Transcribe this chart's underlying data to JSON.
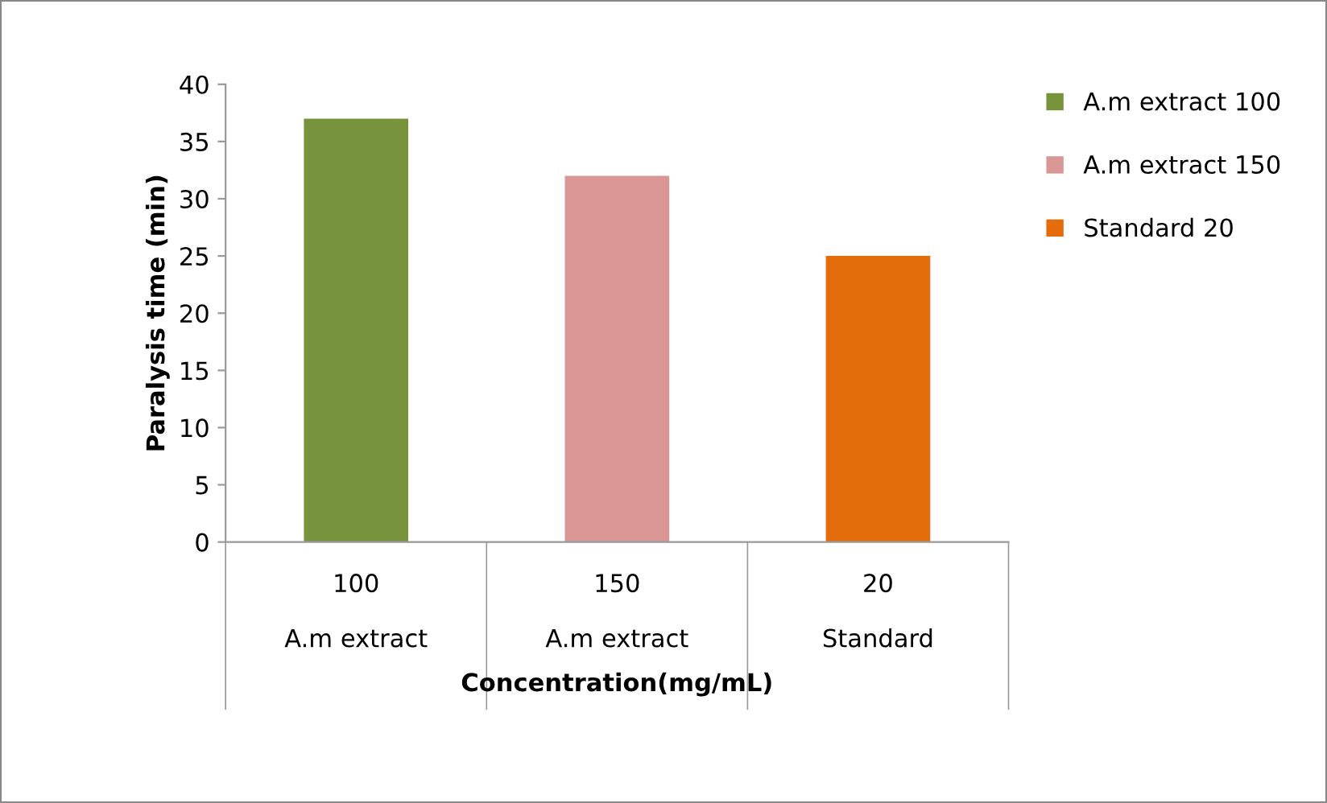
{
  "chart_data": {
    "type": "bar",
    "xlabel": "Concentration(mg/mL)",
    "ylabel": "Paralysis time (min)",
    "categories": [
      "100\n\nA.m extract",
      "150\n\nA.m extract",
      "20\n\nStandard"
    ],
    "series": [
      {
        "name": "A.m extract 100",
        "color": "#77933c",
        "values": [
          37,
          null,
          null
        ]
      },
      {
        "name": "A.m extract 150",
        "color": "#d99694",
        "values": [
          null,
          32,
          null
        ]
      },
      {
        "name": "Standard 20",
        "color": "#e46c0a",
        "values": [
          null,
          null,
          25
        ]
      }
    ],
    "ylim": [
      0,
      40
    ],
    "yticks": [
      0,
      5,
      10,
      15,
      20,
      25,
      30,
      35,
      40
    ],
    "grid": false,
    "legend": "right"
  }
}
